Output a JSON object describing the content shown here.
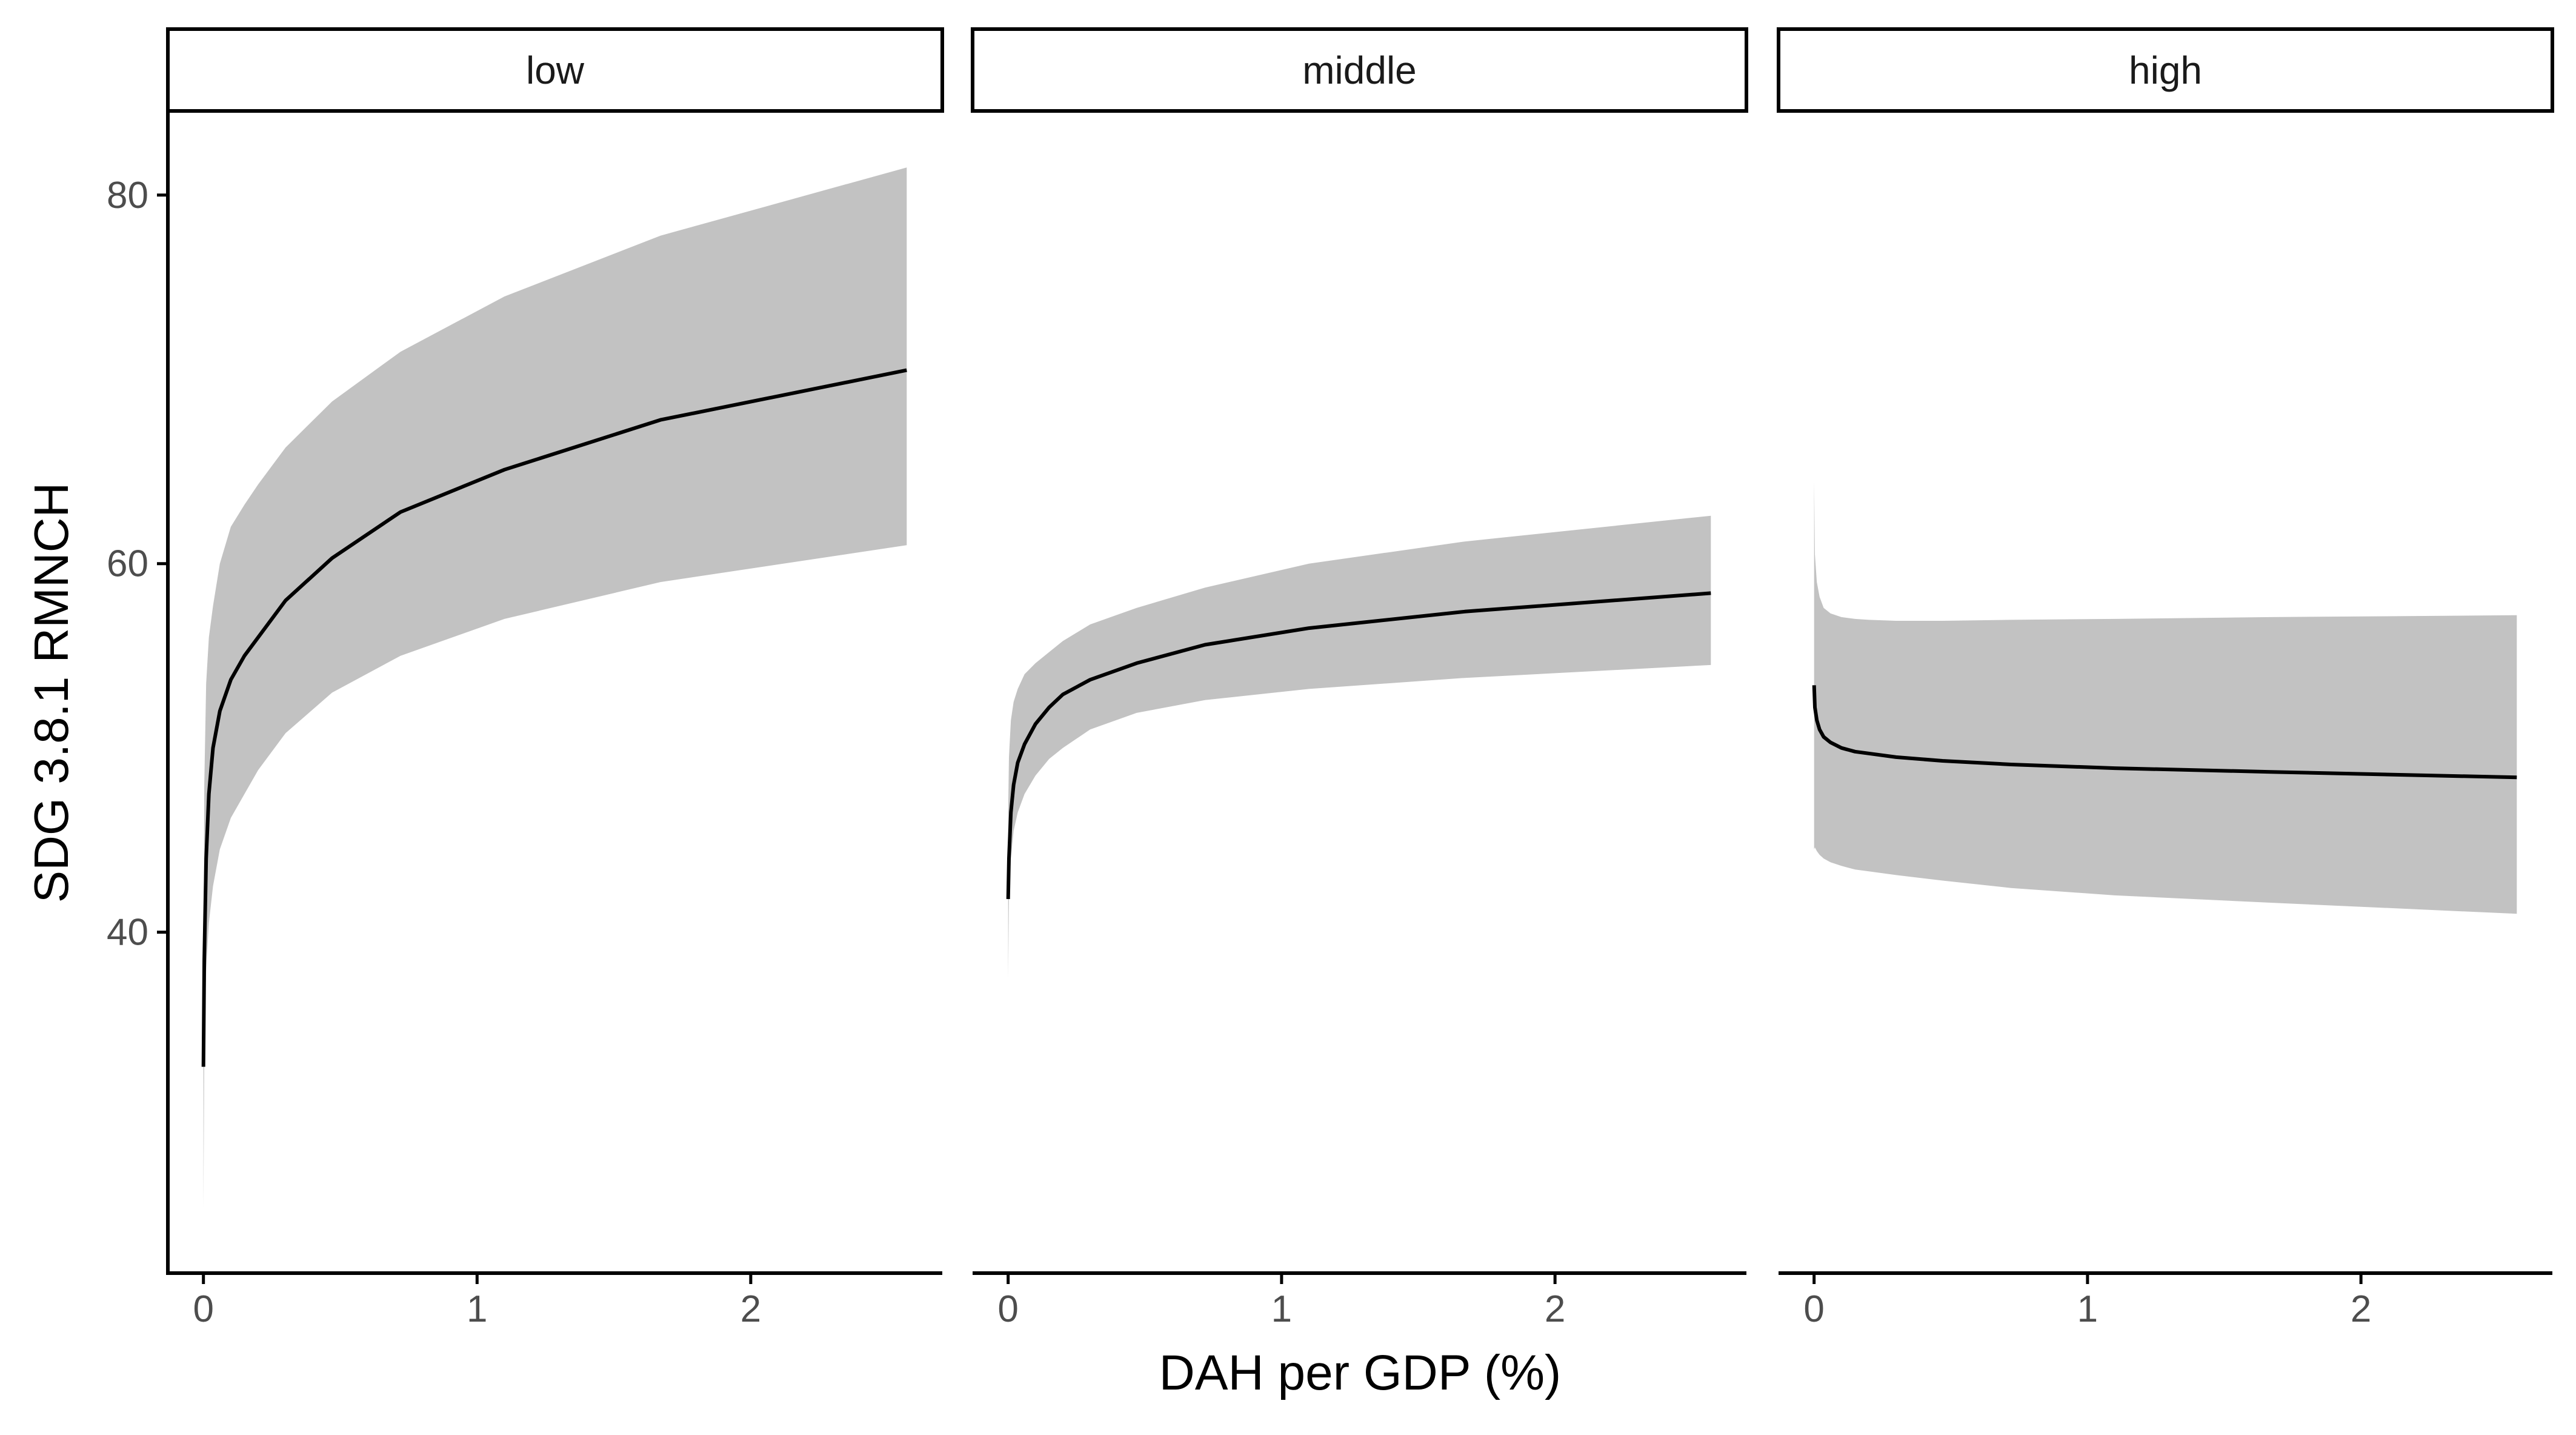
{
  "chart_data": {
    "type": "line",
    "facets": [
      {
        "label": "low",
        "x": [
          0.0,
          0.003,
          0.01,
          0.02,
          0.035,
          0.06,
          0.1,
          0.15,
          0.2,
          0.3,
          0.47,
          0.72,
          1.1,
          1.67,
          2.57
        ],
        "y": [
          32.7,
          38.5,
          44.0,
          47.5,
          50.0,
          52.0,
          53.7,
          55.0,
          56.0,
          58.0,
          60.3,
          62.8,
          65.1,
          67.8,
          70.5
        ],
        "lower": [
          25.0,
          33.5,
          38.0,
          40.5,
          42.5,
          44.5,
          46.2,
          47.5,
          48.8,
          50.8,
          53.0,
          55.0,
          57.0,
          59.0,
          61.0
        ],
        "upper": [
          36.0,
          48.0,
          53.5,
          56.0,
          57.7,
          60.0,
          62.0,
          63.2,
          64.3,
          66.3,
          68.8,
          71.5,
          74.5,
          77.8,
          81.5
        ]
      },
      {
        "label": "middle",
        "x": [
          0.0,
          0.003,
          0.01,
          0.02,
          0.035,
          0.06,
          0.1,
          0.15,
          0.2,
          0.3,
          0.47,
          0.72,
          1.1,
          1.67,
          2.57
        ],
        "y": [
          41.8,
          44.0,
          46.5,
          48.0,
          49.2,
          50.2,
          51.3,
          52.2,
          52.9,
          53.7,
          54.6,
          55.6,
          56.5,
          57.4,
          58.4
        ],
        "lower": [
          37.5,
          42.0,
          44.0,
          45.5,
          46.5,
          47.5,
          48.5,
          49.4,
          50.0,
          51.0,
          51.9,
          52.6,
          53.2,
          53.8,
          54.5
        ],
        "upper": [
          46.5,
          49.5,
          51.5,
          52.5,
          53.2,
          54.0,
          54.6,
          55.2,
          55.8,
          56.7,
          57.6,
          58.7,
          60.0,
          61.2,
          62.6
        ]
      },
      {
        "label": "high",
        "x": [
          0.0,
          0.003,
          0.01,
          0.02,
          0.035,
          0.06,
          0.1,
          0.15,
          0.2,
          0.3,
          0.47,
          0.72,
          1.1,
          1.67,
          2.57
        ],
        "y": [
          53.4,
          52.2,
          51.5,
          51.0,
          50.6,
          50.3,
          50.0,
          49.8,
          49.7,
          49.5,
          49.3,
          49.1,
          48.9,
          48.7,
          48.4
        ],
        "lower": [
          44.5,
          44.6,
          44.4,
          44.2,
          44.0,
          43.8,
          43.6,
          43.4,
          43.3,
          43.1,
          42.8,
          42.4,
          42.0,
          41.6,
          41.0
        ],
        "upper": [
          64.5,
          60.5,
          59.0,
          58.2,
          57.6,
          57.3,
          57.1,
          57.0,
          56.95,
          56.9,
          56.9,
          56.95,
          57.0,
          57.1,
          57.2
        ]
      }
    ],
    "xlabel": "DAH per GDP (%)",
    "ylabel": "SDG 3.8.1 RMNCH",
    "xlim": [
      -0.13,
      2.7
    ],
    "ylim": [
      21.5,
      84.5
    ],
    "xticks": [
      0,
      1,
      2
    ],
    "yticks": [
      40,
      60,
      80
    ],
    "colors": {
      "ribbon": "#c2c2c2",
      "line": "#000000",
      "axis": "#000000",
      "tick_label": "#4d4d4d",
      "strip_fill": "#ffffff",
      "strip_border": "#000000"
    },
    "legend": "none",
    "grid": false
  }
}
